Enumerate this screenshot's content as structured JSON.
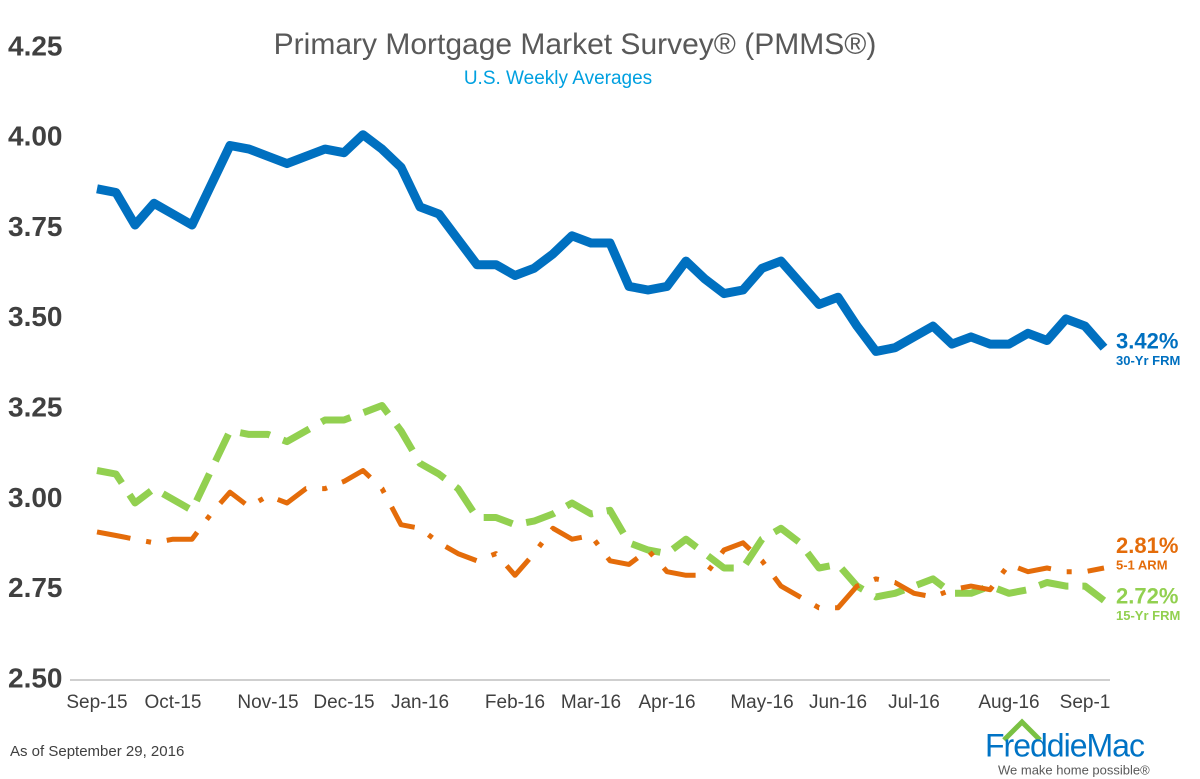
{
  "chart_data": {
    "type": "line",
    "title": "Primary Mortgage Market Survey® (PMMS®)",
    "subtitle": "U.S. Weekly Averages",
    "footnote": "As of September 29, 2016",
    "logo": {
      "name": "FreddieMac",
      "tagline": "We make home possible®"
    },
    "categories": [
      "Sep-15",
      null,
      null,
      null,
      "Oct-15",
      null,
      null,
      null,
      null,
      "Nov-15",
      null,
      null,
      null,
      "Dec-15",
      null,
      null,
      null,
      "Jan-16",
      null,
      null,
      null,
      null,
      "Feb-16",
      null,
      null,
      null,
      "Mar-16",
      null,
      null,
      null,
      "Apr-16",
      null,
      null,
      null,
      null,
      "May-16",
      null,
      null,
      null,
      "Jun-16",
      null,
      null,
      null,
      "Jul-16",
      null,
      null,
      null,
      null,
      "Aug-16",
      null,
      null,
      null,
      "Sep-1",
      null
    ],
    "ylim": [
      2.5,
      4.25
    ],
    "yticks": [
      {
        "value": 2.5,
        "label": "2.50"
      },
      2.75,
      {
        "value": 3,
        "label": "3.00"
      },
      3.25,
      {
        "value": 3.5,
        "label": "3.50"
      },
      3.75,
      {
        "value": 4,
        "label": "4.00"
      },
      4.25
    ],
    "series": [
      {
        "name": "15-Yr FRM",
        "color": "#92d050",
        "last_label": "2.72%",
        "values": [
          3.08,
          3.07,
          2.99,
          3.03,
          3.0,
          2.97,
          3.08,
          3.19,
          3.18,
          3.18,
          3.16,
          3.19,
          3.22,
          3.22,
          3.24,
          3.26,
          3.19,
          3.1,
          3.07,
          3.03,
          2.95,
          2.95,
          2.93,
          2.94,
          2.96,
          2.99,
          2.96,
          2.97,
          2.88,
          2.86,
          2.85,
          2.89,
          2.85,
          2.81,
          2.81,
          2.89,
          2.92,
          2.88,
          2.81,
          2.82,
          2.76,
          2.73,
          2.74,
          2.76,
          2.78,
          2.74,
          2.74,
          2.76,
          2.74,
          2.75,
          2.77,
          2.76,
          2.76,
          2.72
        ]
      },
      {
        "name": "5-1 ARM",
        "color": "#e46c0a",
        "last_label": "2.81%",
        "values": [
          2.91,
          2.9,
          2.89,
          2.88,
          2.89,
          2.89,
          2.96,
          3.02,
          2.98,
          3.01,
          2.99,
          3.03,
          3.03,
          3.05,
          3.08,
          3.03,
          2.93,
          2.92,
          2.88,
          2.85,
          2.83,
          2.85,
          2.79,
          2.85,
          2.92,
          2.89,
          2.9,
          2.83,
          2.82,
          2.86,
          2.8,
          2.79,
          2.79,
          2.86,
          2.88,
          2.83,
          2.76,
          2.73,
          2.7,
          2.7,
          2.76,
          2.78,
          2.77,
          2.74,
          2.73,
          2.75,
          2.76,
          2.75,
          2.82,
          2.8,
          2.81,
          2.8,
          2.8,
          2.81
        ]
      },
      {
        "name": "30-Yr FRM",
        "color": "#0070c0",
        "last_label": "3.42%",
        "values": [
          3.86,
          3.85,
          3.76,
          3.82,
          3.79,
          3.76,
          3.87,
          3.98,
          3.97,
          3.95,
          3.93,
          3.95,
          3.97,
          3.96,
          4.01,
          3.97,
          3.92,
          3.81,
          3.79,
          3.72,
          3.65,
          3.65,
          3.62,
          3.64,
          3.68,
          3.73,
          3.71,
          3.71,
          3.59,
          3.58,
          3.59,
          3.66,
          3.61,
          3.57,
          3.58,
          3.64,
          3.66,
          3.6,
          3.54,
          3.56,
          3.48,
          3.41,
          3.42,
          3.45,
          3.48,
          3.43,
          3.45,
          3.43,
          3.43,
          3.46,
          3.44,
          3.5,
          3.48,
          3.42
        ]
      }
    ]
  }
}
